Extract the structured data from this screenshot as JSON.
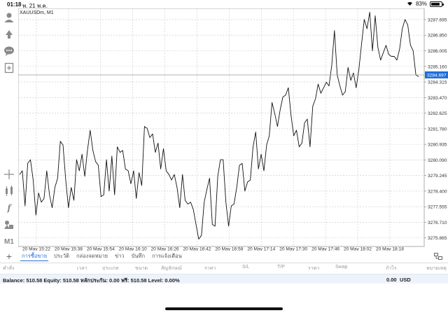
{
  "status_bar": {
    "time": "01:18",
    "date": "พ. 21 พ.ค.",
    "battery": "83%",
    "battery_level": 0.83
  },
  "chart": {
    "symbol": "XAUUSDm, M1",
    "price_levels": [
      "3287.695",
      "3286.850",
      "3286.005",
      "3285.160",
      "3284.315",
      "3283.470",
      "3282.625",
      "3281.780",
      "3280.935",
      "3280.090",
      "3279.245",
      "3278.400",
      "3277.555",
      "3276.710",
      "3275.865"
    ],
    "current_price": "3284.697",
    "time_labels": [
      "20 May 15:22",
      "20 May 15:38",
      "20 May 15:54",
      "20 May 16:10",
      "20 May 16:26",
      "20 May 16:42",
      "20 May 16:58",
      "20 May 17:14",
      "20 May 17:30",
      "20 May 17:46",
      "20 May 18:02",
      "20 May 18:18"
    ],
    "colors": {
      "line": "#111111",
      "grid": "#c8c8c8",
      "price_tag": "#1e6fd9"
    }
  },
  "chart_data": {
    "type": "line",
    "title": "XAUUSDm, M1",
    "xlabel": "",
    "ylabel": "",
    "ylim": [
      3275.4,
      3288.3
    ],
    "x_start": "20 May 15:15",
    "x_interval_minutes": 1,
    "grid": true,
    "current_price": 3284.697,
    "series": [
      {
        "name": "XAUUSDm",
        "values": [
          3279.3,
          3279.5,
          3277.6,
          3279.9,
          3280.1,
          3279.0,
          3277.1,
          3278.3,
          3277.8,
          3278.0,
          3279.5,
          3278.2,
          3277.5,
          3278.6,
          3279.1,
          3281.1,
          3280.9,
          3279.0,
          3277.5,
          3278.6,
          3277.9,
          3280.1,
          3279.5,
          3280.4,
          3279.2,
          3280.6,
          3281.7,
          3280.6,
          3280.0,
          3279.8,
          3278.1,
          3278.2,
          3280.1,
          3278.4,
          3280.3,
          3278.2,
          3280.8,
          3280.5,
          3280.6,
          3279.6,
          3279.5,
          3278.8,
          3279.5,
          3278.0,
          3279.4,
          3278.7,
          3281.9,
          3281.8,
          3281.3,
          3281.5,
          3280.5,
          3281.0,
          3279.6,
          3280.7,
          3279.5,
          3279.3,
          3279.0,
          3279.3,
          3278.6,
          3277.5,
          3279.3,
          3277.9,
          3277.7,
          3277.8,
          3277.4,
          3276.6,
          3275.8,
          3276.0,
          3277.8,
          3278.5,
          3279.1,
          3276.6,
          3276.5,
          3279.2,
          3280.1,
          3280.1,
          3277.8,
          3276.5,
          3277.6,
          3277.7,
          3278.6,
          3279.8,
          3279.9,
          3278.4,
          3278.9,
          3279.0,
          3280.8,
          3281.6,
          3279.6,
          3280.4,
          3279.5,
          3280.9,
          3281.4,
          3283.2,
          3282.6,
          3281.9,
          3282.8,
          3283.5,
          3283.6,
          3284.0,
          3282.5,
          3281.4,
          3281.7,
          3280.8,
          3281.0,
          3282.1,
          3282.3,
          3280.8,
          3283.0,
          3283.4,
          3284.2,
          3283.7,
          3284.0,
          3284.3,
          3284.1,
          3285.2,
          3287.1,
          3284.7,
          3284.1,
          3283.6,
          3283.8,
          3285.1,
          3284.4,
          3284.8,
          3284.0,
          3285.0,
          3286.4,
          3287.7,
          3287.2,
          3288.1,
          3286.0,
          3287.9,
          3286.2,
          3285.5,
          3285.9,
          3286.3,
          3285.8,
          3285.7,
          3285.7,
          3285.5,
          3286.1,
          3287.2,
          3287.7,
          3287.4,
          3286.3,
          3286.0,
          3284.7,
          3284.6
        ]
      }
    ]
  },
  "tabs": {
    "add_label": "+",
    "items": [
      {
        "label": "การซื้อขาย",
        "active": true
      },
      {
        "label": "ประวัติ",
        "active": false
      },
      {
        "label": "กล่องจดหมาย",
        "active": false
      },
      {
        "label": "ข่าว",
        "active": false
      },
      {
        "label": "บันทึก",
        "active": false
      },
      {
        "label": "การแจ้งเตือน",
        "active": false
      }
    ]
  },
  "table": {
    "headers": [
      "คำสั่ง",
      "เวลา",
      "ประเภท",
      "ขนาด",
      "สัญลักษณ์",
      "ราคา",
      "S/L",
      "T/P",
      "ราคา",
      "Swap",
      "กำไร",
      "หมายเหตุ"
    ]
  },
  "balance": {
    "summary": "Balance: 510.58 Equity: 510.58 หลักประกัน: 0.00 ฟรี: 510.58 Level: 0.00%",
    "total": "0.00",
    "currency": "USD"
  },
  "toolbar": {
    "icons": [
      "account-icon",
      "trade-arrows-icon",
      "chat-icon",
      "new-order-icon",
      "crosshair-icon",
      "indicators-icon",
      "function-icon",
      "objects-icon",
      "timeframe-icon"
    ],
    "timeframe": "M1"
  }
}
